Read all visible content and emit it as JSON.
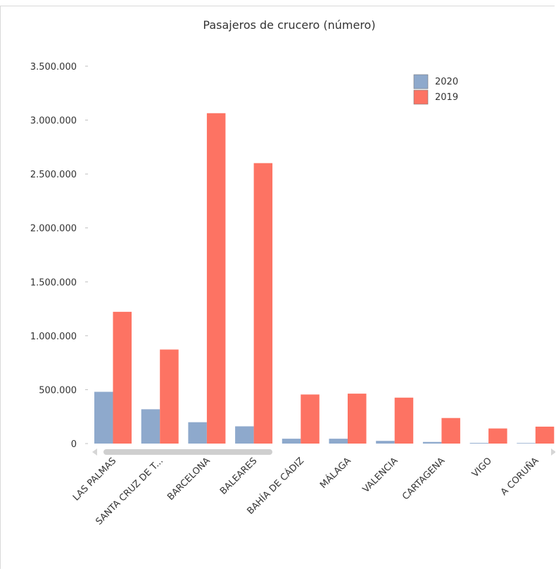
{
  "colors": {
    "s2020": "#8ea9cc",
    "s2019": "#fd7363",
    "scroll": "#cfcfcf"
  },
  "chart_data": {
    "type": "bar",
    "title": "Pasajeros de crucero (número)",
    "xlabel": "",
    "ylabel": "",
    "ylim": [
      0,
      3500000
    ],
    "yticks": [
      0,
      500000,
      1000000,
      1500000,
      2000000,
      2500000,
      3000000,
      3500000
    ],
    "ytick_labels": [
      "0",
      "500.000",
      "1.000.000",
      "1.500.000",
      "2.000.000",
      "2.500.000",
      "3.000.000",
      "3.500.000"
    ],
    "categories": [
      "LAS PALMAS",
      "SANTA CRUZ DE T...",
      "BARCELONA",
      "BALEARES",
      "BAHÍA DE CÁDIZ",
      "MÁLAGA",
      "VALENCIA",
      "CARTAGENA",
      "VIGO",
      "A CORUÑA"
    ],
    "series": [
      {
        "name": "2020",
        "values": [
          480000,
          318000,
          198000,
          160000,
          45000,
          45000,
          25000,
          15000,
          6000,
          5000
        ]
      },
      {
        "name": "2019",
        "values": [
          1222000,
          872000,
          3064000,
          2601000,
          455000,
          463000,
          426000,
          237000,
          140000,
          157000
        ]
      }
    ],
    "legend": {
      "position": "top-right",
      "entries": [
        "2020",
        "2019"
      ]
    },
    "grid": false
  }
}
